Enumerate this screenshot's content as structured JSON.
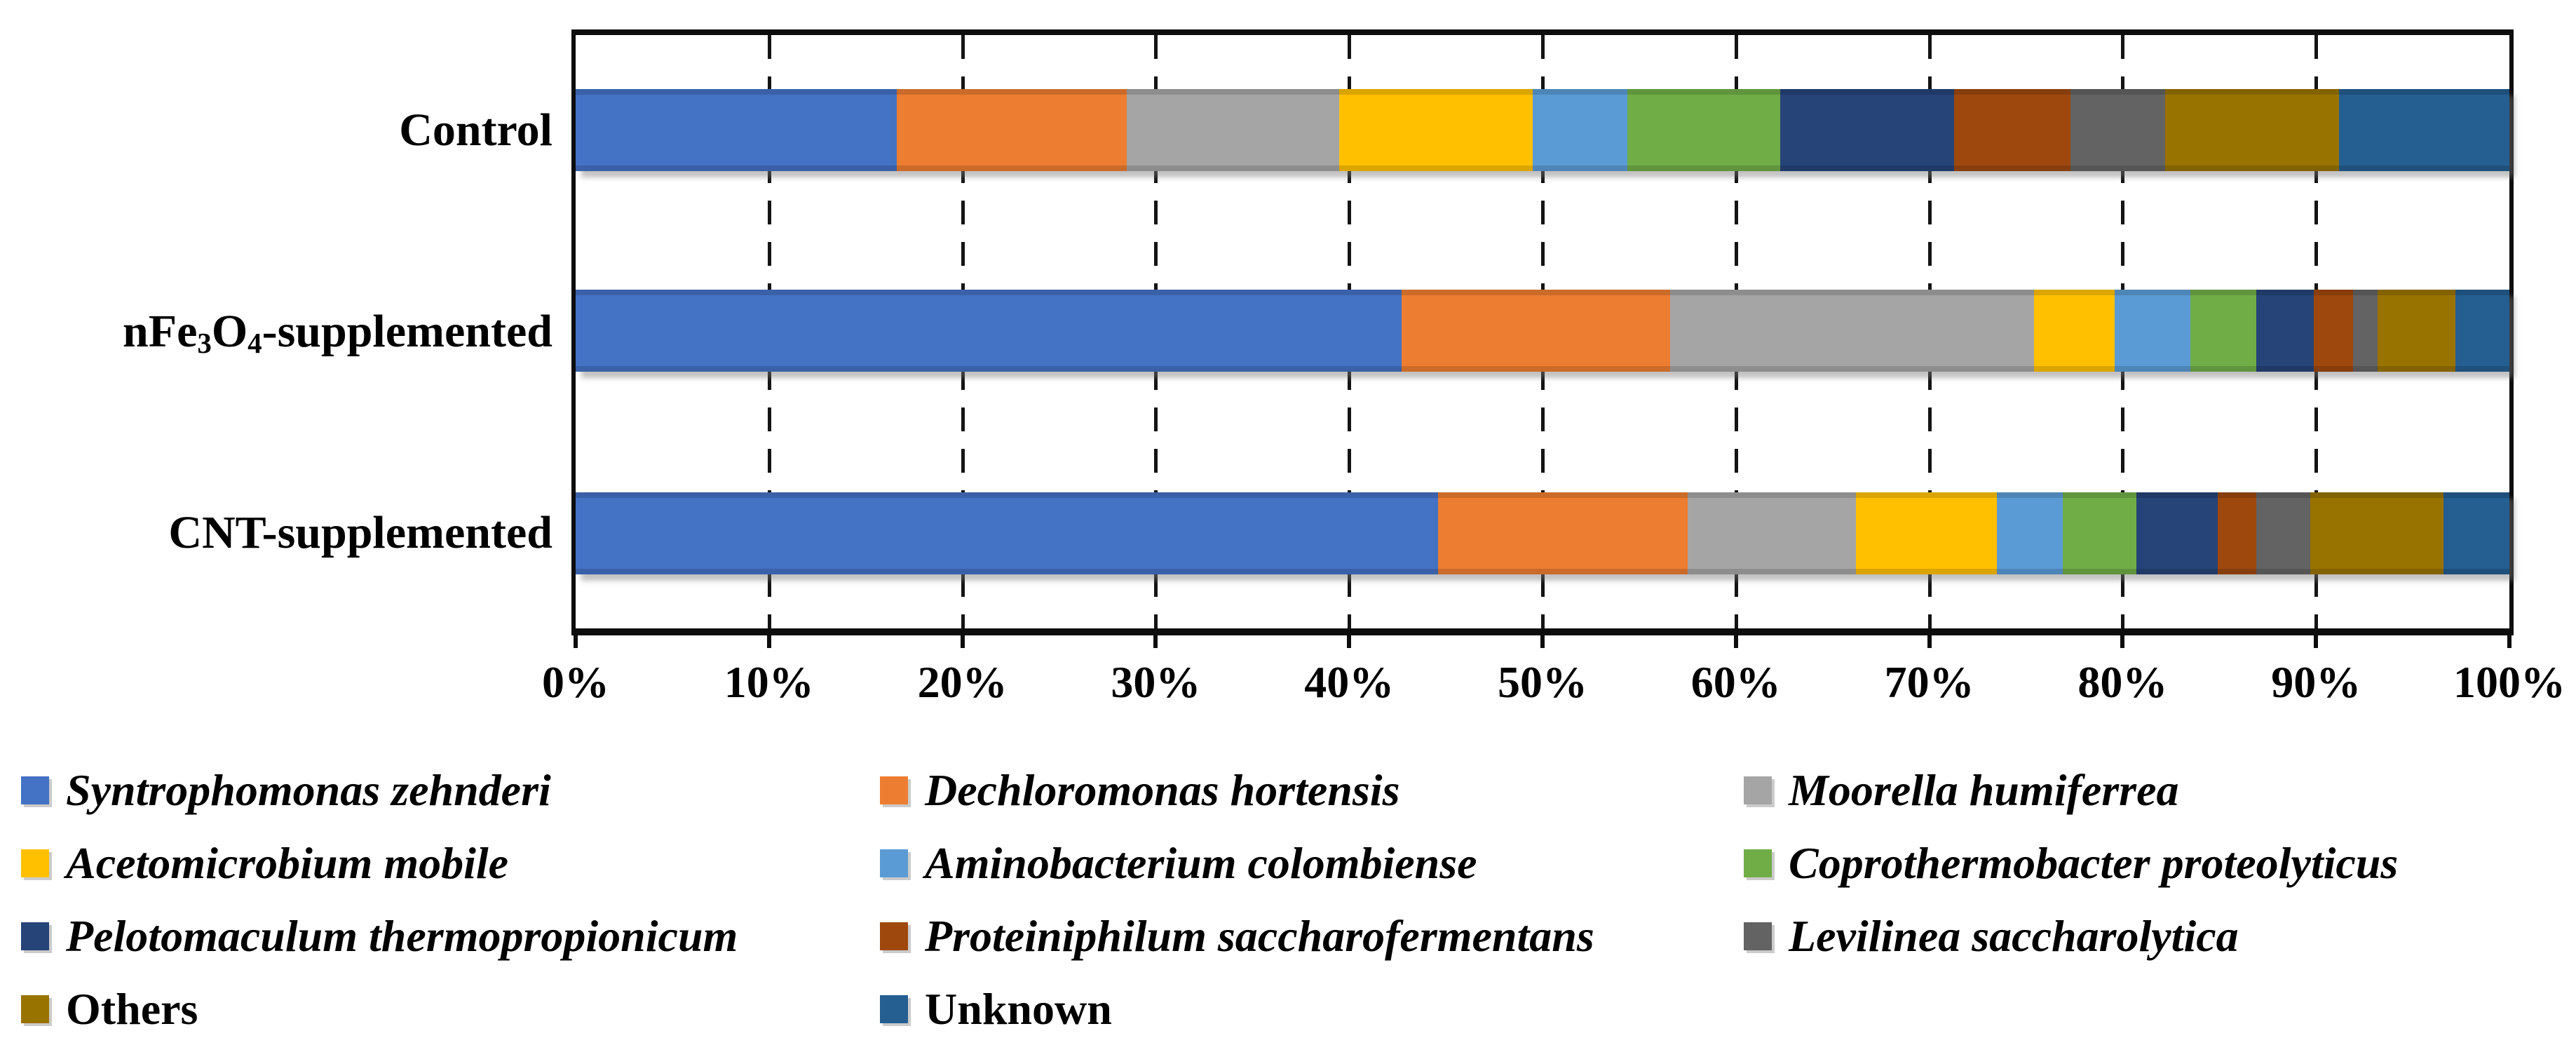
{
  "chart_data": {
    "type": "bar",
    "variant": "horizontal-stacked-100",
    "title": "",
    "xlabel": "",
    "ylabel": "",
    "xlim": [
      0,
      100
    ],
    "grid": "vertical-dashed",
    "legend_position": "bottom",
    "categories": [
      "Control",
      "nFe₃O₄-supplemented",
      "CNT-supplemented"
    ],
    "x_ticks": [
      "0%",
      "10%",
      "20%",
      "30%",
      "40%",
      "50%",
      "60%",
      "70%",
      "80%",
      "90%",
      "100%"
    ],
    "series": [
      {
        "name": "Syntrophomonas zehnderi",
        "color": "#4472C4",
        "italic": true,
        "values": [
          16.6,
          42.7,
          44.6
        ]
      },
      {
        "name": "Dechloromonas hortensis",
        "color": "#ED7D31",
        "italic": true,
        "values": [
          11.9,
          13.9,
          12.9
        ]
      },
      {
        "name": "Moorella humiferrea",
        "color": "#A5A5A5",
        "italic": true,
        "values": [
          11.0,
          18.8,
          8.7
        ]
      },
      {
        "name": "Acetomicrobium mobile",
        "color": "#FFC000",
        "italic": true,
        "values": [
          10.0,
          4.2,
          7.3
        ]
      },
      {
        "name": "Aminobacterium colombiense",
        "color": "#5B9BD5",
        "italic": true,
        "values": [
          4.9,
          3.9,
          3.4
        ]
      },
      {
        "name": "Coprothermobacter proteolyticus",
        "color": "#70AD47",
        "italic": true,
        "values": [
          7.9,
          3.4,
          3.8
        ]
      },
      {
        "name": "Pelotomaculum thermopropionicum",
        "color": "#264478",
        "italic": true,
        "values": [
          9.0,
          3.0,
          4.2
        ]
      },
      {
        "name": "Proteiniphilum saccharofermentans",
        "color": "#9E480E",
        "italic": true,
        "values": [
          6.0,
          2.0,
          2.0
        ]
      },
      {
        "name": "Levilinea saccharolytica",
        "color": "#636363",
        "italic": true,
        "values": [
          4.9,
          1.3,
          2.8
        ]
      },
      {
        "name": "Others",
        "color": "#997300",
        "italic": false,
        "values": [
          9.0,
          4.0,
          6.9
        ]
      },
      {
        "name": "Unknown",
        "color": "#255E91",
        "italic": false,
        "values": [
          8.8,
          2.8,
          3.4
        ]
      }
    ]
  }
}
